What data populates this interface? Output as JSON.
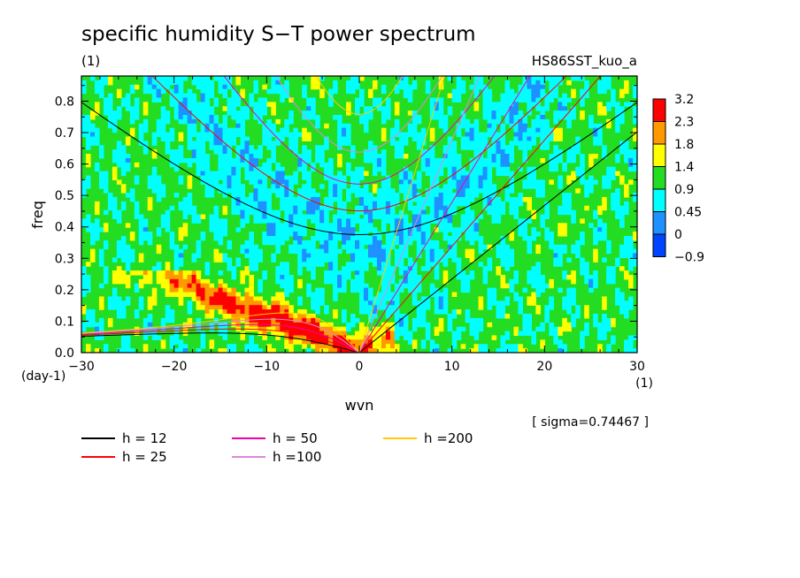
{
  "chart_data": {
    "type": "heatmap",
    "title": "specific humidity S−T power spectrum",
    "subtitle_left": "(1)",
    "subtitle_right": "HS86SST_kuo_a",
    "xlabel": "wvn",
    "ylabel": "freq",
    "x_unit": "(1)",
    "y_unit": "(day-1)",
    "xlim": [
      -30,
      30
    ],
    "ylim": [
      0,
      0.88
    ],
    "x_ticks": [
      -30,
      -20,
      -10,
      0,
      10,
      20,
      30
    ],
    "x_tick_labels": [
      "−30",
      "−20",
      "−10",
      "0",
      "10",
      "20",
      "30"
    ],
    "y_ticks": [
      0.0,
      0.1,
      0.2,
      0.3,
      0.4,
      0.5,
      0.6,
      0.7,
      0.8
    ],
    "y_tick_labels": [
      "0.0",
      "0.1",
      "0.2",
      "0.3",
      "0.4",
      "0.5",
      "0.6",
      "0.7",
      "0.8"
    ],
    "sigma_label": "[ sigma=0.74467 ]",
    "colorbar": {
      "labels": [
        "3.2",
        "2.3",
        "1.8",
        "1.4",
        "0.9",
        "0.45",
        "0",
        "−0.9"
      ],
      "colors": [
        "#ff0000",
        "#ff9900",
        "#ffff00",
        "#22dd22",
        "#00ffff",
        "#1e90ff",
        "#0044ff"
      ]
    },
    "dispersion_curves": [
      {
        "label": "h = 12",
        "h": 12,
        "color": "#000000"
      },
      {
        "label": "h = 25",
        "h": 25,
        "color": "#ff0000"
      },
      {
        "label": "h = 50",
        "h": 50,
        "color": "#ee00aa"
      },
      {
        "label": "h =100",
        "h": 100,
        "color": "#dd88dd"
      },
      {
        "label": "h =200",
        "h": 200,
        "color": "#ffcc00"
      }
    ],
    "grid": false
  }
}
